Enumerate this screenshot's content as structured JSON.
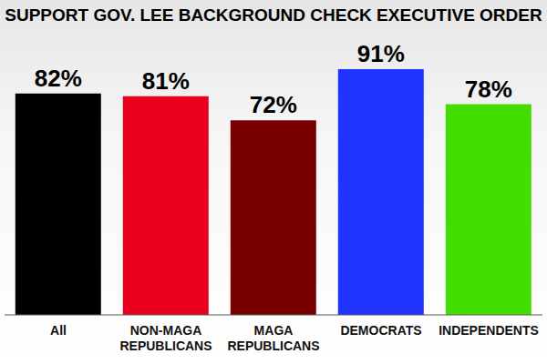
{
  "chart_data": {
    "type": "bar",
    "title": "SUPPORT GOV. LEE BACKGROUND CHECK EXECUTIVE ORDER",
    "categories": [
      "All",
      "NON-MAGA REPUBLICANS",
      "MAGA REPUBLICANS",
      "DEMOCRATS",
      "INDEPENDENTS"
    ],
    "values": [
      82,
      81,
      72,
      91,
      78
    ],
    "value_labels": [
      "82%",
      "81%",
      "72%",
      "91%",
      "78%"
    ],
    "colors": [
      "#000000",
      "#e8001c",
      "#780000",
      "#1f35ff",
      "#44dd00"
    ],
    "data_labels": true,
    "tick_labels": "x",
    "grid": false
  }
}
